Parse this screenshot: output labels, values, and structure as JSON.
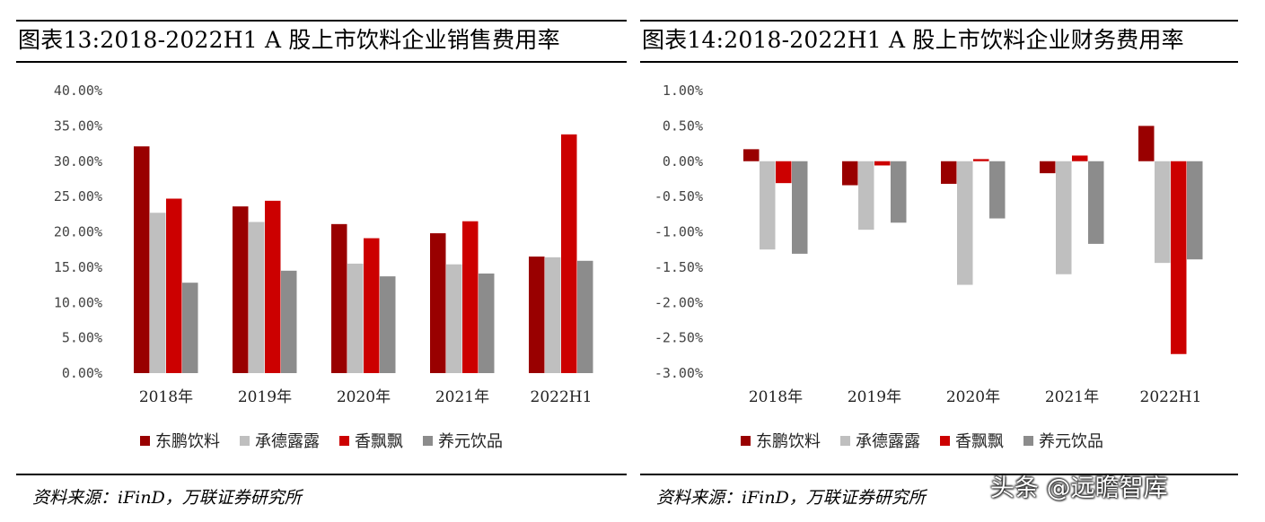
{
  "colors": {
    "dongpeng": "#990000",
    "chengde": "#bfbfbf",
    "xiangpiaopiao": "#cc0000",
    "yangyuan": "#8c8c8c"
  },
  "chart_data": [
    {
      "type": "bar",
      "title": "图表13:2018-2022H1 A 股上市饮料企业销售费用率",
      "categories": [
        "2018年",
        "2019年",
        "2020年",
        "2021年",
        "2022H1"
      ],
      "ylim": [
        0,
        40
      ],
      "yticks": [
        0,
        5,
        10,
        15,
        20,
        25,
        30,
        35,
        40
      ],
      "ytick_labels": [
        "0.00%",
        "5.00%",
        "10.00%",
        "15.00%",
        "20.00%",
        "25.00%",
        "30.00%",
        "35.00%",
        "40.00%"
      ],
      "series": [
        {
          "name": "东鹏饮料",
          "values": [
            32.1,
            23.6,
            21.1,
            19.8,
            16.5
          ]
        },
        {
          "name": "承德露露",
          "values": [
            22.7,
            21.4,
            15.5,
            15.4,
            16.4
          ]
        },
        {
          "name": "香飘飘",
          "values": [
            24.7,
            24.4,
            19.1,
            21.5,
            33.8
          ]
        },
        {
          "name": "养元饮品",
          "values": [
            12.8,
            14.5,
            13.7,
            14.1,
            15.9
          ]
        }
      ],
      "source": "资料来源：iFinD，万联证券研究所"
    },
    {
      "type": "bar",
      "title": "图表14:2018-2022H1 A 股上市饮料企业财务费用率",
      "categories": [
        "2018年",
        "2019年",
        "2020年",
        "2021年",
        "2022H1"
      ],
      "ylim": [
        -3,
        1
      ],
      "yticks": [
        -3,
        -2.5,
        -2,
        -1.5,
        -1,
        -0.5,
        0,
        0.5,
        1
      ],
      "ytick_labels": [
        "-3.00%",
        "-2.50%",
        "-2.00%",
        "-1.50%",
        "-1.00%",
        "-0.50%",
        "0.00%",
        "0.50%",
        "1.00%"
      ],
      "series": [
        {
          "name": "东鹏饮料",
          "values": [
            0.17,
            -0.34,
            -0.32,
            -0.17,
            0.5
          ]
        },
        {
          "name": "承德露露",
          "values": [
            -1.25,
            -0.97,
            -1.75,
            -1.6,
            -1.44
          ]
        },
        {
          "name": "香飘飘",
          "values": [
            -0.31,
            -0.06,
            0.03,
            0.08,
            -2.73
          ]
        },
        {
          "name": "养元饮品",
          "values": [
            -1.31,
            -0.87,
            -0.81,
            -1.17,
            -1.39
          ]
        }
      ],
      "source": "资料来源：iFinD，万联证券研究所"
    }
  ],
  "watermark": "头条 @远瞻智库"
}
